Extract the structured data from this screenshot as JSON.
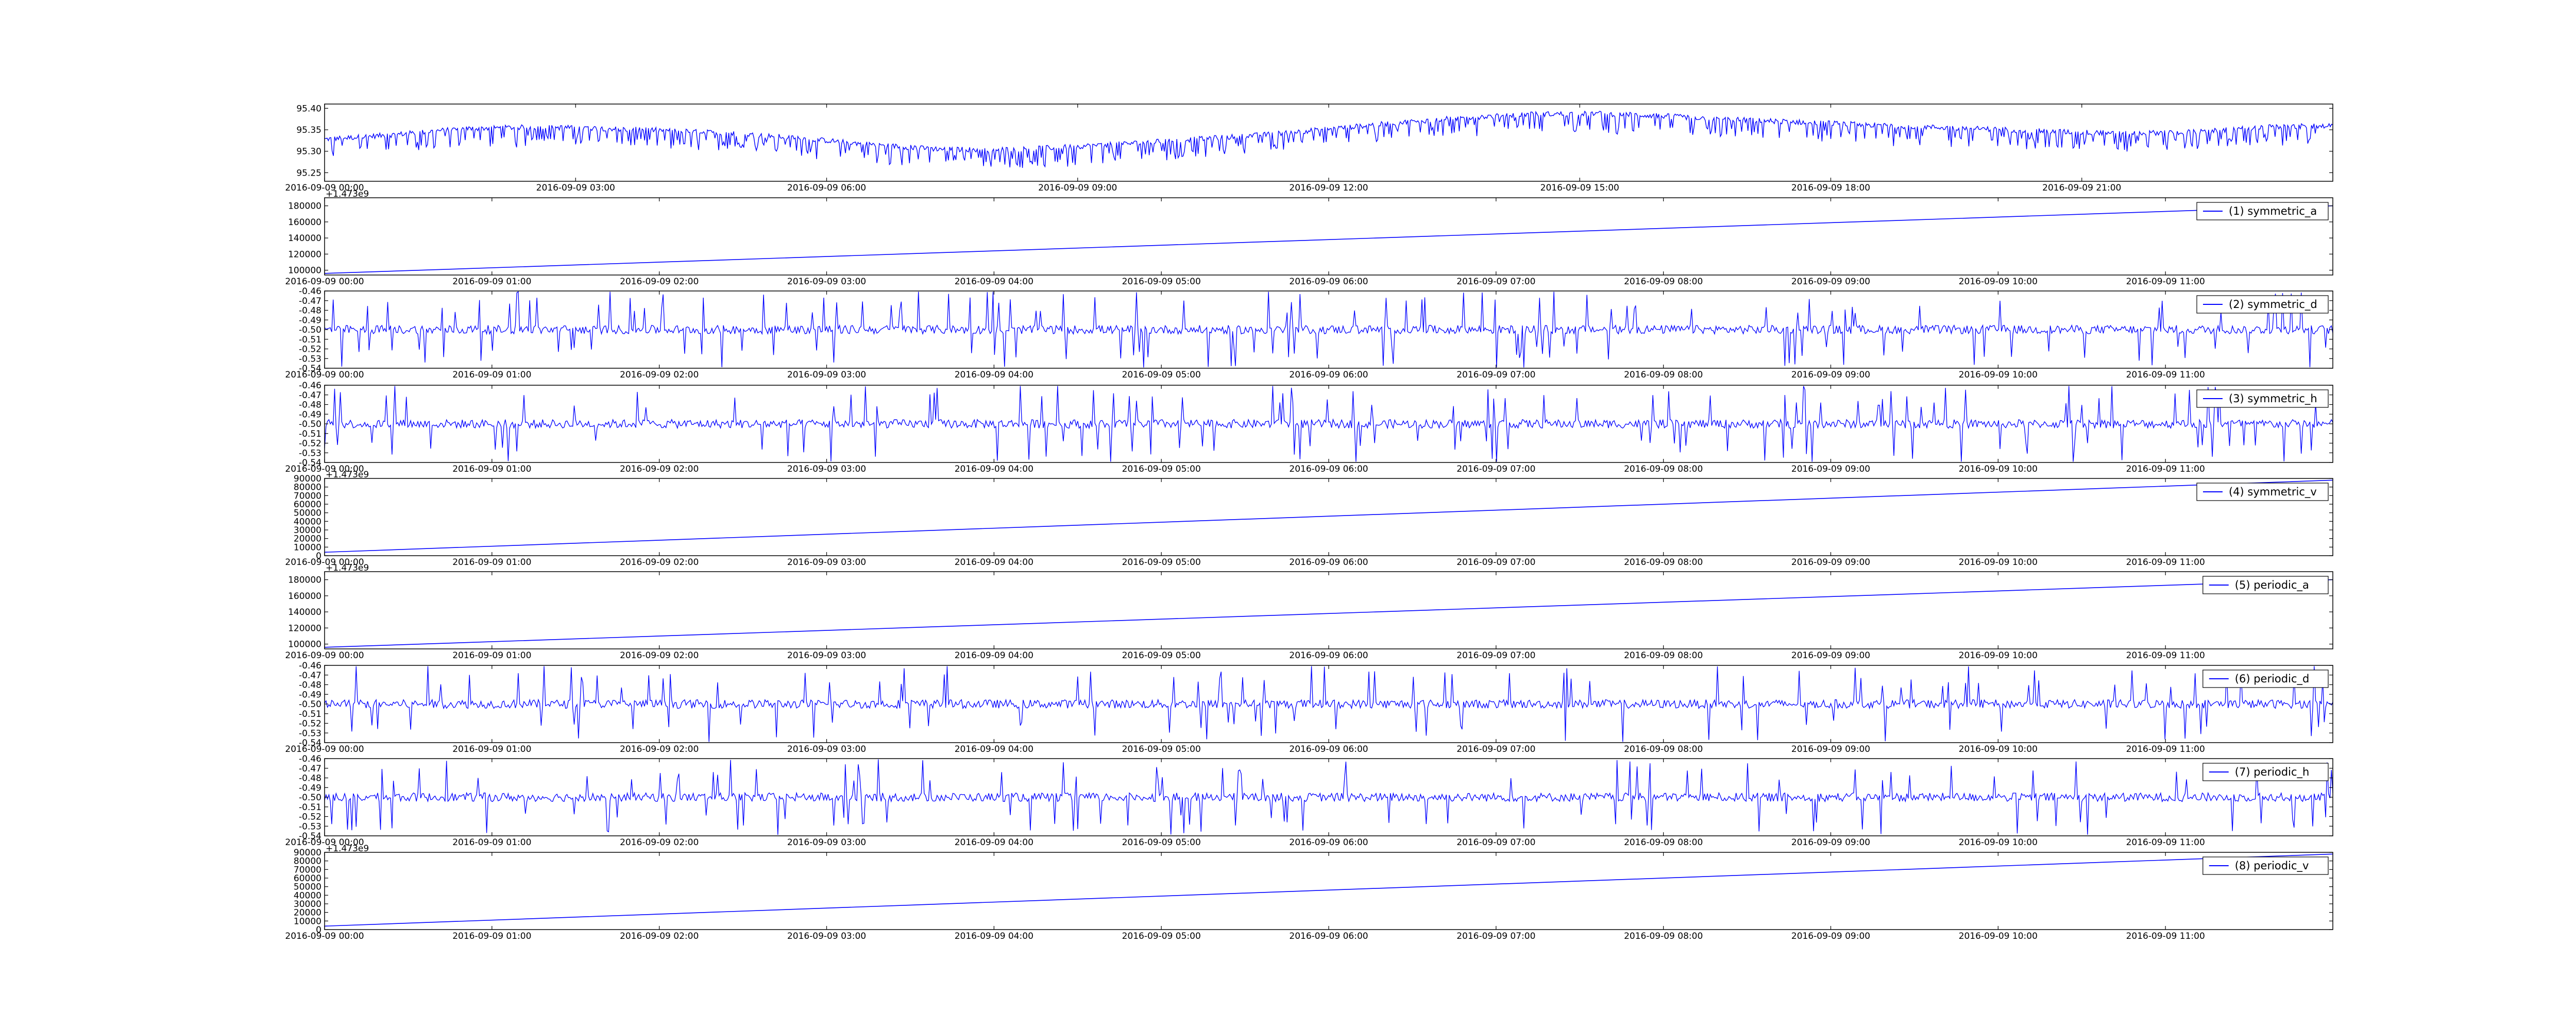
{
  "colors": {
    "line": "#0000ff",
    "axes": "#000000",
    "background": "#ffffff"
  },
  "chart_data": [
    {
      "type": "line",
      "series": [
        {
          "values": [
            95.328,
            95.338,
            95.352,
            95.356,
            95.354,
            95.349,
            95.342,
            95.332,
            95.318,
            95.306,
            95.303,
            95.309,
            95.318,
            95.328,
            95.338,
            95.352,
            95.366,
            95.378,
            95.386,
            95.388,
            95.382,
            95.374,
            95.368,
            95.362,
            95.356,
            95.351,
            95.345,
            95.342,
            95.345,
            95.356,
            95.36
          ],
          "style": "noisy_downspikes",
          "spike_depth": 0.035
        }
      ],
      "y_ticks": [
        "95.40",
        "95.35",
        "95.30",
        "95.25"
      ],
      "ylim": [
        95.23,
        95.41
      ],
      "x_ticks": [
        "2016-09-09 00:00",
        "2016-09-09 03:00",
        "2016-09-09 06:00",
        "2016-09-09 09:00",
        "2016-09-09 12:00",
        "2016-09-09 15:00",
        "2016-09-09 18:00",
        "2016-09-09 21:00"
      ],
      "xlim": [
        0,
        24
      ],
      "x_tick_hours": [
        0,
        3,
        6,
        9,
        12,
        15,
        18,
        21
      ],
      "offset_text": "",
      "legend": ""
    },
    {
      "type": "line",
      "series": [
        {
          "name": "(1) symmetric_a",
          "values": [
            96000,
            180000
          ],
          "style": "linear"
        }
      ],
      "y_ticks": [
        "180000",
        "160000",
        "140000",
        "120000",
        "100000"
      ],
      "ylim": [
        94000,
        190000
      ],
      "x_ticks": [
        "2016-09-09 00:00",
        "2016-09-09 01:00",
        "2016-09-09 02:00",
        "2016-09-09 03:00",
        "2016-09-09 04:00",
        "2016-09-09 05:00",
        "2016-09-09 06:00",
        "2016-09-09 07:00",
        "2016-09-09 08:00",
        "2016-09-09 09:00",
        "2016-09-09 10:00",
        "2016-09-09 11:00"
      ],
      "xlim": [
        0,
        12
      ],
      "x_tick_hours": [
        0,
        1,
        2,
        3,
        4,
        5,
        6,
        7,
        8,
        9,
        10,
        11
      ],
      "offset_text": "+1.473e9",
      "legend": "(1) symmetric_a"
    },
    {
      "type": "line",
      "series": [
        {
          "name": "(2) symmetric_d",
          "baseline": -0.5,
          "style": "noisy_spikes"
        }
      ],
      "y_ticks": [
        "-0.46",
        "-0.47",
        "-0.48",
        "-0.49",
        "-0.50",
        "-0.51",
        "-0.52",
        "-0.53",
        "-0.54"
      ],
      "ylim": [
        -0.54,
        -0.46
      ],
      "x_ticks": [
        "2016-09-09 00:00",
        "2016-09-09 01:00",
        "2016-09-09 02:00",
        "2016-09-09 03:00",
        "2016-09-09 04:00",
        "2016-09-09 05:00",
        "2016-09-09 06:00",
        "2016-09-09 07:00",
        "2016-09-09 08:00",
        "2016-09-09 09:00",
        "2016-09-09 10:00",
        "2016-09-09 11:00"
      ],
      "xlim": [
        0,
        12
      ],
      "x_tick_hours": [
        0,
        1,
        2,
        3,
        4,
        5,
        6,
        7,
        8,
        9,
        10,
        11
      ],
      "offset_text": "",
      "legend": "(2) symmetric_d"
    },
    {
      "type": "line",
      "series": [
        {
          "name": "(3) symmetric_h",
          "baseline": -0.5,
          "style": "noisy_spikes"
        }
      ],
      "y_ticks": [
        "-0.46",
        "-0.47",
        "-0.48",
        "-0.49",
        "-0.50",
        "-0.51",
        "-0.52",
        "-0.53",
        "-0.54"
      ],
      "ylim": [
        -0.54,
        -0.46
      ],
      "x_ticks": [
        "2016-09-09 00:00",
        "2016-09-09 01:00",
        "2016-09-09 02:00",
        "2016-09-09 03:00",
        "2016-09-09 04:00",
        "2016-09-09 05:00",
        "2016-09-09 06:00",
        "2016-09-09 07:00",
        "2016-09-09 08:00",
        "2016-09-09 09:00",
        "2016-09-09 10:00",
        "2016-09-09 11:00"
      ],
      "xlim": [
        0,
        12
      ],
      "x_tick_hours": [
        0,
        1,
        2,
        3,
        4,
        5,
        6,
        7,
        8,
        9,
        10,
        11
      ],
      "offset_text": "",
      "legend": "(3) symmetric_h"
    },
    {
      "type": "line",
      "series": [
        {
          "name": "(4) symmetric_v",
          "values": [
            4000,
            88000
          ],
          "style": "linear"
        }
      ],
      "y_ticks": [
        "90000",
        "80000",
        "70000",
        "60000",
        "50000",
        "40000",
        "30000",
        "20000",
        "10000",
        "0"
      ],
      "ylim": [
        0,
        90000
      ],
      "x_ticks": [
        "2016-09-09 00:00",
        "2016-09-09 01:00",
        "2016-09-09 02:00",
        "2016-09-09 03:00",
        "2016-09-09 04:00",
        "2016-09-09 05:00",
        "2016-09-09 06:00",
        "2016-09-09 07:00",
        "2016-09-09 08:00",
        "2016-09-09 09:00",
        "2016-09-09 10:00",
        "2016-09-09 11:00"
      ],
      "xlim": [
        0,
        12
      ],
      "x_tick_hours": [
        0,
        1,
        2,
        3,
        4,
        5,
        6,
        7,
        8,
        9,
        10,
        11
      ],
      "offset_text": "+1.473e9",
      "legend": "(4) symmetric_v"
    },
    {
      "type": "line",
      "series": [
        {
          "name": "(5) periodic_a",
          "values": [
            96000,
            180000
          ],
          "style": "linear"
        }
      ],
      "y_ticks": [
        "180000",
        "160000",
        "140000",
        "120000",
        "100000"
      ],
      "ylim": [
        94000,
        190000
      ],
      "x_ticks": [
        "2016-09-09 00:00",
        "2016-09-09 01:00",
        "2016-09-09 02:00",
        "2016-09-09 03:00",
        "2016-09-09 04:00",
        "2016-09-09 05:00",
        "2016-09-09 06:00",
        "2016-09-09 07:00",
        "2016-09-09 08:00",
        "2016-09-09 09:00",
        "2016-09-09 10:00",
        "2016-09-09 11:00"
      ],
      "xlim": [
        0,
        12
      ],
      "x_tick_hours": [
        0,
        1,
        2,
        3,
        4,
        5,
        6,
        7,
        8,
        9,
        10,
        11
      ],
      "offset_text": "+1.473e9",
      "legend": "(5) periodic_a"
    },
    {
      "type": "line",
      "series": [
        {
          "name": "(6) periodic_d",
          "baseline": -0.5,
          "style": "noisy_spikes"
        }
      ],
      "y_ticks": [
        "-0.46",
        "-0.47",
        "-0.48",
        "-0.49",
        "-0.50",
        "-0.51",
        "-0.52",
        "-0.53",
        "-0.54"
      ],
      "ylim": [
        -0.54,
        -0.46
      ],
      "x_ticks": [
        "2016-09-09 00:00",
        "2016-09-09 01:00",
        "2016-09-09 02:00",
        "2016-09-09 03:00",
        "2016-09-09 04:00",
        "2016-09-09 05:00",
        "2016-09-09 06:00",
        "2016-09-09 07:00",
        "2016-09-09 08:00",
        "2016-09-09 09:00",
        "2016-09-09 10:00",
        "2016-09-09 11:00"
      ],
      "xlim": [
        0,
        12
      ],
      "x_tick_hours": [
        0,
        1,
        2,
        3,
        4,
        5,
        6,
        7,
        8,
        9,
        10,
        11
      ],
      "offset_text": "",
      "legend": "(6) periodic_d"
    },
    {
      "type": "line",
      "series": [
        {
          "name": "(7) periodic_h",
          "baseline": -0.5,
          "style": "noisy_spikes"
        }
      ],
      "y_ticks": [
        "-0.46",
        "-0.47",
        "-0.48",
        "-0.49",
        "-0.50",
        "-0.51",
        "-0.52",
        "-0.53",
        "-0.54"
      ],
      "ylim": [
        -0.54,
        -0.46
      ],
      "x_ticks": [
        "2016-09-09 00:00",
        "2016-09-09 01:00",
        "2016-09-09 02:00",
        "2016-09-09 03:00",
        "2016-09-09 04:00",
        "2016-09-09 05:00",
        "2016-09-09 06:00",
        "2016-09-09 07:00",
        "2016-09-09 08:00",
        "2016-09-09 09:00",
        "2016-09-09 10:00",
        "2016-09-09 11:00"
      ],
      "xlim": [
        0,
        12
      ],
      "x_tick_hours": [
        0,
        1,
        2,
        3,
        4,
        5,
        6,
        7,
        8,
        9,
        10,
        11
      ],
      "offset_text": "",
      "legend": "(7) periodic_h"
    },
    {
      "type": "line",
      "series": [
        {
          "name": "(8) periodic_v",
          "values": [
            4000,
            88000
          ],
          "style": "linear"
        }
      ],
      "y_ticks": [
        "90000",
        "80000",
        "70000",
        "60000",
        "50000",
        "40000",
        "30000",
        "20000",
        "10000",
        "0"
      ],
      "ylim": [
        0,
        90000
      ],
      "x_ticks": [
        "2016-09-09 00:00",
        "2016-09-09 01:00",
        "2016-09-09 02:00",
        "2016-09-09 03:00",
        "2016-09-09 04:00",
        "2016-09-09 05:00",
        "2016-09-09 06:00",
        "2016-09-09 07:00",
        "2016-09-09 08:00",
        "2016-09-09 09:00",
        "2016-09-09 10:00",
        "2016-09-09 11:00"
      ],
      "xlim": [
        0,
        12
      ],
      "x_tick_hours": [
        0,
        1,
        2,
        3,
        4,
        5,
        6,
        7,
        8,
        9,
        10,
        11
      ],
      "offset_text": "+1.473e9",
      "legend": "(8) periodic_v"
    }
  ]
}
